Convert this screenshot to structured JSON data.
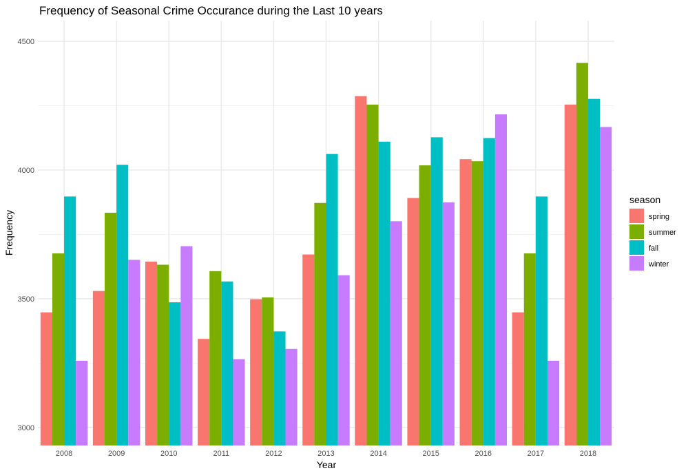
{
  "chart_data": {
    "type": "bar",
    "title": "Frequency of Seasonal Crime Occurance during the Last 10 years",
    "xlabel": "Year",
    "ylabel": "Frequency",
    "categories": [
      "2008",
      "2009",
      "2010",
      "2011",
      "2012",
      "2013",
      "2014",
      "2015",
      "2016",
      "2017",
      "2018"
    ],
    "ylim": [
      2930,
      4580
    ],
    "yticks": [
      3000,
      3500,
      4000,
      4500
    ],
    "grid": true,
    "legend": {
      "title": "season",
      "position": "right"
    },
    "series": [
      {
        "name": "spring",
        "color": "#F8766D",
        "values": [
          3447,
          3530,
          3644,
          3344,
          3498,
          3672,
          4287,
          3891,
          4042,
          3447,
          4254
        ]
      },
      {
        "name": "summer",
        "color": "#7CAE00",
        "values": [
          3676,
          3834,
          3632,
          3607,
          3505,
          3872,
          4254,
          4018,
          4034,
          3676,
          4416
        ]
      },
      {
        "name": "fall",
        "color": "#00BFC4",
        "values": [
          3897,
          4020,
          3486,
          3567,
          3373,
          4062,
          4110,
          4127,
          4124,
          3897,
          4276
        ]
      },
      {
        "name": "winter",
        "color": "#C77CFF",
        "values": [
          3259,
          3651,
          3704,
          3265,
          3305,
          3591,
          3801,
          3874,
          4216,
          3259,
          4167
        ]
      }
    ]
  }
}
